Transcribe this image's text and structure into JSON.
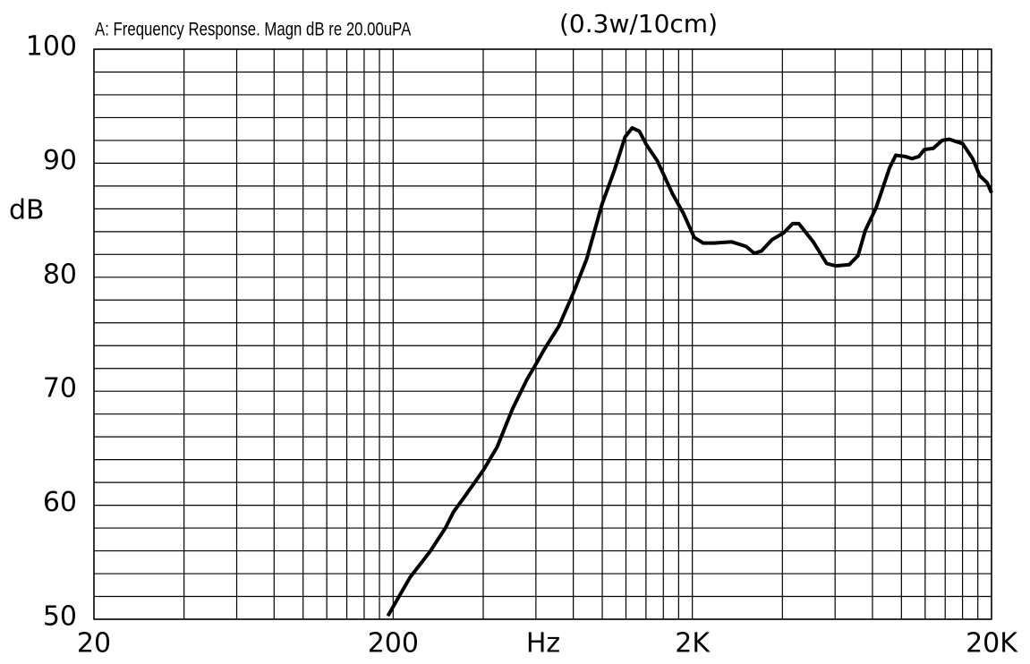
{
  "chart_data": {
    "type": "line",
    "title": "A: Frequency Response. Magn dB re 20.00uPA",
    "subtitle": "(0.3w/10cm)",
    "x_label": "Hz",
    "y_label": "dB",
    "x_scale": "log",
    "grid": true,
    "color": "#000000",
    "xlim": [
      20,
      20000
    ],
    "xticks": [
      20,
      200,
      {
        "value": 2000,
        "label": "2K"
      },
      {
        "value": 20000,
        "label": "20K"
      }
    ],
    "ylim": [
      50,
      100
    ],
    "yticks": [
      50,
      60,
      70,
      80,
      90,
      100
    ],
    "x": [
      192,
      228,
      265,
      299,
      318,
      350,
      401,
      445,
      500,
      559,
      607,
      641,
      716,
      800,
      887,
      998,
      1099,
      1192,
      1259,
      1331,
      1406,
      1528,
      1718,
      1867,
      2028,
      2173,
      2361,
      2711,
      3027,
      3220,
      3404,
      3694,
      4040,
      4328,
      4541,
      5073,
      5625,
      6028,
      6685,
      7163,
      7570,
      8224,
      9125,
      9570,
      10260,
      10840,
      11440,
      11920,
      12770,
      13680,
      14460,
      16030,
      17300,
      18280,
      19320,
      20000
    ],
    "values": [
      50.3,
      53.7,
      55.9,
      58.0,
      59.4,
      60.9,
      63.1,
      65.1,
      68.4,
      71.0,
      72.6,
      73.7,
      75.7,
      78.6,
      81.6,
      86.4,
      89.4,
      92.3,
      93.1,
      92.8,
      91.6,
      90.2,
      87.3,
      85.6,
      83.5,
      83.0,
      83.0,
      83.1,
      82.7,
      82.1,
      82.3,
      83.3,
      83.9,
      84.7,
      84.7,
      83.1,
      81.2,
      81.0,
      81.1,
      81.9,
      84.1,
      86.1,
      89.6,
      90.7,
      90.6,
      90.4,
      90.6,
      91.2,
      91.3,
      92.0,
      92.1,
      91.7,
      90.4,
      88.9,
      88.3,
      87.4
    ]
  }
}
